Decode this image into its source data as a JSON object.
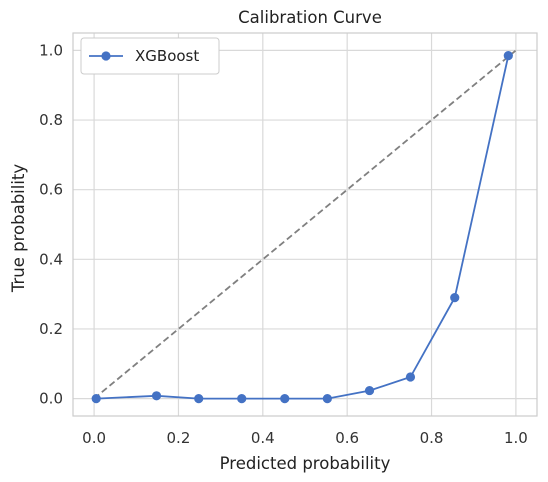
{
  "chart_data": {
    "type": "line",
    "title": "Calibration Curve",
    "xlabel": "Predicted probability",
    "ylabel": "True probability",
    "xlim": [
      -0.05,
      1.05
    ],
    "ylim": [
      -0.05,
      1.05
    ],
    "x_ticks": [
      "0.0",
      "0.2",
      "0.4",
      "0.6",
      "0.8",
      "1.0"
    ],
    "y_ticks": [
      "0.0",
      "0.2",
      "0.4",
      "0.6",
      "0.8",
      "1.0"
    ],
    "grid": true,
    "legend_position": "top-left",
    "series": [
      {
        "name": "XGBoost",
        "color": "#4472c4",
        "marker": "circle",
        "x": [
          0.005,
          0.148,
          0.248,
          0.35,
          0.452,
          0.553,
          0.653,
          0.75,
          0.855,
          0.982
        ],
        "y": [
          0.0,
          0.008,
          0.0,
          0.0,
          0.0,
          0.0,
          0.023,
          0.062,
          0.29,
          0.985
        ]
      }
    ],
    "reference_line": {
      "x": [
        0,
        1
      ],
      "y": [
        0,
        1
      ],
      "color": "#808080",
      "style": "dashed"
    }
  }
}
